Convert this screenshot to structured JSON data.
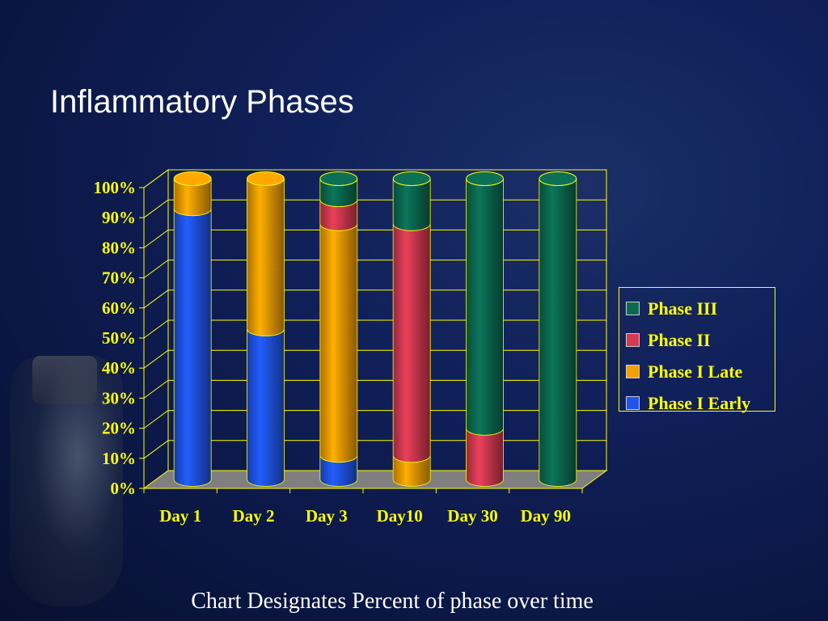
{
  "slide": {
    "title": "Inflammatory Phases",
    "caption": "Chart Designates Percent of phase over time"
  },
  "chart_data": {
    "type": "bar",
    "stacked": true,
    "style": "3d-cylinder",
    "categories": [
      "Day 1",
      "Day 2",
      "Day 3",
      "Day10",
      "Day 30",
      "Day 90"
    ],
    "series": [
      {
        "name": "Phase I Early",
        "color": "#1f55ee",
        "values": [
          90,
          50,
          8,
          0,
          0,
          0
        ]
      },
      {
        "name": "Phase I Late",
        "color": "#f5a000",
        "values": [
          10,
          50,
          77,
          8,
          0,
          0
        ]
      },
      {
        "name": "Phase II",
        "color": "#d63a52",
        "values": [
          0,
          0,
          8,
          77,
          17,
          0
        ]
      },
      {
        "name": "Phase III",
        "color": "#0b6b52",
        "values": [
          0,
          0,
          7,
          15,
          83,
          100
        ]
      }
    ],
    "y_ticks": [
      "0%",
      "10%",
      "20%",
      "30%",
      "40%",
      "50%",
      "60%",
      "70%",
      "80%",
      "90%",
      "100%"
    ],
    "ylim": [
      0,
      100
    ],
    "grid": true,
    "legend_position": "right",
    "text_color": "#ffff00",
    "floor_color": "#7f7f7f"
  },
  "legend": {
    "items": [
      {
        "label": "Phase III",
        "color": "#0b6b52"
      },
      {
        "label": "Phase II",
        "color": "#d63a52"
      },
      {
        "label": "Phase I Late",
        "color": "#f5a000"
      },
      {
        "label": "Phase I Early",
        "color": "#1f55ee"
      }
    ]
  }
}
